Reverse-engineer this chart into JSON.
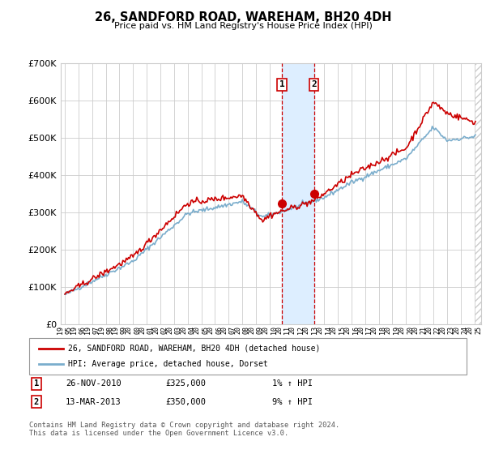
{
  "title": "26, SANDFORD ROAD, WAREHAM, BH20 4DH",
  "subtitle": "Price paid vs. HM Land Registry's House Price Index (HPI)",
  "legend_line1": "26, SANDFORD ROAD, WAREHAM, BH20 4DH (detached house)",
  "legend_line2": "HPI: Average price, detached house, Dorset",
  "transaction1_date": "26-NOV-2010",
  "transaction1_price": "£325,000",
  "transaction1_hpi": "1% ↑ HPI",
  "transaction2_date": "13-MAR-2013",
  "transaction2_price": "£350,000",
  "transaction2_hpi": "9% ↑ HPI",
  "footer": "Contains HM Land Registry data © Crown copyright and database right 2024.\nThis data is licensed under the Open Government Licence v3.0.",
  "ylim": [
    0,
    700000
  ],
  "yticks": [
    0,
    100000,
    200000,
    300000,
    400000,
    500000,
    600000,
    700000
  ],
  "red_color": "#cc0000",
  "blue_color": "#7aadcc",
  "shade_color": "#ddeeff",
  "grid_color": "#cccccc",
  "bg_color": "#ffffff",
  "marker1_x": 2010.9,
  "marker2_x": 2013.25,
  "xlim_left": 1994.7,
  "xlim_right": 2025.5
}
